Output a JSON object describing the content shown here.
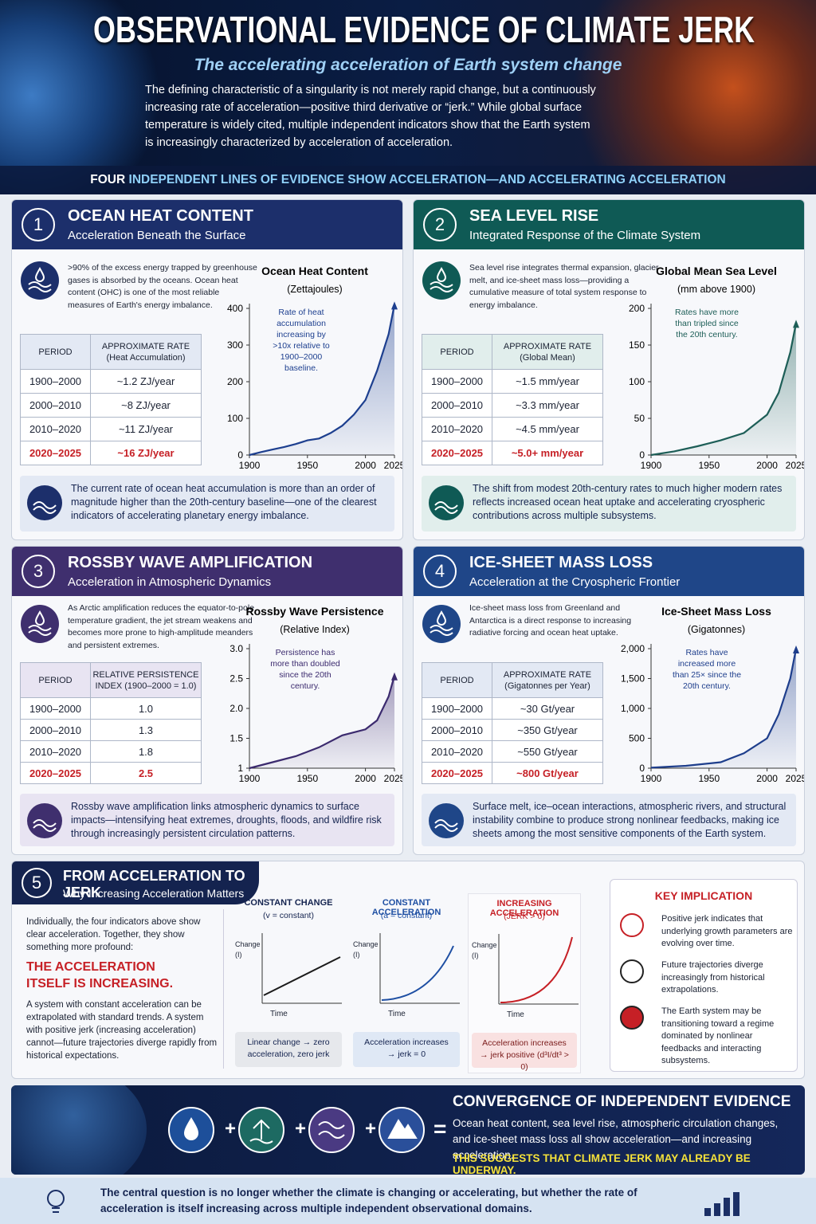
{
  "header": {
    "title": "OBSERVATIONAL EVIDENCE OF CLIMATE JERK",
    "subtitle": "The accelerating acceleration of Earth system change",
    "intro": "The defining characteristic of a singularity is not merely rapid change, but a continuously increasing rate of acceleration—positive third derivative or “jerk.” While global surface temperature is widely cited, multiple independent indicators show that the Earth system is increasingly characterized by acceleration of acceleration.",
    "banner": [
      "FOUR",
      "INDEPENDENT LINES OF EVIDENCE SHOW ACCELERATION—AND ACCELERATING ACCELERATION"
    ]
  },
  "panels": [
    {
      "number": "1",
      "title": "OCEAN HEAT CONTENT",
      "subtitle": "Acceleration Beneath the Surface",
      "description": ">90% of the excess energy trapped by greenhouse gases is absorbed by the oceans. Ocean heat content (OHC) is one of the most reliable measures of Earth's energy imbalance.",
      "table": {
        "headers": [
          "PERIOD",
          "APPROXIMATE RATE"
        ],
        "header_note": "(Heat Accumulation)",
        "rows": [
          [
            "1900–2000",
            "~1.2 ZJ/year"
          ],
          [
            "2000–2010",
            "~8 ZJ/year"
          ],
          [
            "2010–2020",
            "~11 ZJ/year"
          ],
          [
            "2020–2025",
            "~16 ZJ/year"
          ]
        ]
      },
      "chart": {
        "type": "area",
        "title": "Ocean Heat Content",
        "subtitle": "(Zettajoules)",
        "annotation": "Rate of heat accumulation increasing by >10x relative to 1900–2000 baseline.",
        "x": [
          1900,
          1910,
          1920,
          1930,
          1940,
          1950,
          1960,
          1970,
          1980,
          1990,
          2000,
          2010,
          2020,
          2025
        ],
        "values": [
          0,
          8,
          15,
          22,
          30,
          40,
          45,
          60,
          80,
          110,
          150,
          230,
          330,
          410
        ],
        "xlim": [
          1900,
          2025
        ],
        "xticks": [
          1900,
          1950,
          2000,
          2025
        ],
        "ylim": [
          0,
          400
        ],
        "yticks": [
          0,
          100,
          200,
          300,
          400
        ],
        "color": "#1d3f8f"
      },
      "note": "The current rate of ocean heat accumulation is more than an order of magnitude higher than the 20th-century baseline—one of the clearest indicators of accelerating planetary energy imbalance."
    },
    {
      "number": "2",
      "title": "SEA LEVEL RISE",
      "subtitle": "Integrated Response of the Climate System",
      "description": "Sea level rise integrates thermal expansion, glacier melt, and ice-sheet mass loss—providing a cumulative measure of total system response to energy imbalance.",
      "table": {
        "headers": [
          "PERIOD",
          "APPROXIMATE RATE"
        ],
        "header_note": "(Global Mean)",
        "rows": [
          [
            "1900–2000",
            "~1.5 mm/year"
          ],
          [
            "2000–2010",
            "~3.3 mm/year"
          ],
          [
            "2010–2020",
            "~4.5 mm/year"
          ],
          [
            "2020–2025",
            "~5.0+ mm/year"
          ]
        ]
      },
      "chart": {
        "type": "area",
        "title": "Global Mean Sea Level",
        "subtitle": "(mm above 1900)",
        "annotation": "Rates have more than tripled since the 20th century.",
        "x": [
          1900,
          1920,
          1940,
          1960,
          1980,
          2000,
          2010,
          2020,
          2025
        ],
        "values": [
          0,
          5,
          12,
          20,
          30,
          55,
          85,
          140,
          180
        ],
        "xlim": [
          1900,
          2025
        ],
        "xticks": [
          1900,
          1950,
          2000,
          2025
        ],
        "ylim": [
          0,
          200
        ],
        "yticks": [
          0,
          50,
          100,
          150,
          200
        ],
        "color": "#1d5e57"
      },
      "note": "The shift from modest 20th-century rates to much higher modern rates reflects increased ocean heat uptake and accelerating cryospheric contributions across multiple subsystems."
    },
    {
      "number": "3",
      "title": "ROSSBY WAVE AMPLIFICATION",
      "subtitle": "Acceleration in Atmospheric Dynamics",
      "description": "As Arctic amplification reduces the equator-to-pole temperature gradient, the jet stream weakens and becomes more prone to high-amplitude meanders and persistent extremes.",
      "table": {
        "headers": [
          "PERIOD",
          "RELATIVE PERSISTENCE"
        ],
        "header_note": "INDEX (1900–2000 = 1.0)",
        "rows": [
          [
            "1900–2000",
            "1.0"
          ],
          [
            "2000–2010",
            "1.3"
          ],
          [
            "2010–2020",
            "1.8"
          ],
          [
            "2020–2025",
            "2.5"
          ]
        ]
      },
      "chart": {
        "type": "area",
        "title": "Rossby Wave Persistence",
        "subtitle": "(Relative Index)",
        "annotation": "Persistence has more than doubled since the 20th century.",
        "x": [
          1900,
          1920,
          1940,
          1960,
          1980,
          2000,
          2010,
          2020,
          2025
        ],
        "values": [
          1,
          1.1,
          1.2,
          1.35,
          1.55,
          1.65,
          1.8,
          2.2,
          2.55
        ],
        "xlim": [
          1900,
          2025
        ],
        "xticks": [
          1900,
          1950,
          2000,
          2025
        ],
        "ylim": [
          1,
          3
        ],
        "yticks": [
          1,
          1.5,
          {
            "value": 2,
            "label": "2.0"
          },
          2.5,
          {
            "value": 3,
            "label": "3.0"
          }
        ],
        "color": "#3b2a6e"
      },
      "note": "Rossby wave amplification links atmospheric dynamics to surface impacts—intensifying heat extremes, droughts, floods, and wildfire risk through increasingly persistent circulation patterns."
    },
    {
      "number": "4",
      "title": "ICE-SHEET MASS LOSS",
      "subtitle": "Acceleration at the Cryospheric Frontier",
      "description": "Ice-sheet mass loss from Greenland and Antarctica is a direct response to increasing radiative forcing and ocean heat uptake.",
      "table": {
        "headers": [
          "PERIOD",
          "APPROXIMATE RATE"
        ],
        "header_note": "(Gigatonnes per Year)",
        "rows": [
          [
            "1900–2000",
            "~30 Gt/year"
          ],
          [
            "2000–2010",
            "~350 Gt/year"
          ],
          [
            "2010–2020",
            "~550 Gt/year"
          ],
          [
            "2020–2025",
            "~800 Gt/year"
          ]
        ]
      },
      "chart": {
        "type": "area",
        "title": "Ice-Sheet Mass Loss",
        "subtitle": "(Gigatonnes)",
        "annotation": "Rates have increased more than 25× since the 20th century.",
        "x": [
          1900,
          1930,
          1960,
          1980,
          2000,
          2010,
          2020,
          2025
        ],
        "values": [
          10,
          40,
          100,
          250,
          500,
          900,
          1500,
          2000
        ],
        "xlim": [
          1900,
          2025
        ],
        "xticks": [
          1900,
          1950,
          2000,
          2025
        ],
        "ylim": [
          0,
          2000
        ],
        "yticks": [
          0,
          500,
          {
            "value": 1000,
            "label": "1,000"
          },
          {
            "value": 1500,
            "label": "1,500"
          },
          {
            "value": 2000,
            "label": "2,000"
          }
        ],
        "color": "#1e3e8c"
      },
      "note": "Surface melt, ice–ocean interactions, atmospheric rivers, and structural instability combine to produce strong nonlinear feedbacks, making ice sheets among the most sensitive components of the Earth system."
    }
  ],
  "jerk": {
    "number": "5",
    "title": "FROM ACCELERATION TO JERK",
    "subtitle": "Why Increasing Acceleration Matters",
    "intro": "Individually, the four indicators above show clear acceleration. Together, they show something more profound:",
    "emphasis": "THE ACCELERATION ITSELF IS INCREASING.",
    "body": "A system with constant acceleration can be extrapolated with standard trends. A system with positive jerk (increasing acceleration) cannot—future trajectories diverge rapidly from historical expectations.",
    "diagrams": [
      {
        "title": "CONSTANT CHANGE",
        "formula": "(v = constant)",
        "y_label": "Change (I)",
        "x_label": "Time",
        "caption": "Linear change → zero acceleration, zero jerk"
      },
      {
        "title": "CONSTANT ACCELERATION",
        "formula": "(a = constant)",
        "y_label": "Change (I)",
        "x_label": "Time",
        "caption": "Acceleration increases → jerk = 0"
      },
      {
        "title": "INCREASING ACCELERATION",
        "formula": "(JERK > 0)",
        "y_label": "Change (I)",
        "x_label": "Time",
        "caption": "Acceleration increases → jerk positive (d³I/dt³ > 0)"
      }
    ],
    "implication": {
      "title": "KEY IMPLICATION",
      "items": [
        "Positive jerk indicates that underlying growth parameters are evolving over time.",
        "Future trajectories diverge increasingly from historical extrapolations.",
        "The Earth system may be transitioning toward a regime dominated by nonlinear feedbacks and interacting subsystems."
      ]
    }
  },
  "convergence": {
    "title": "CONVERGENCE OF INDEPENDENT EVIDENCE",
    "body": "Ocean heat content, sea level rise, atmospheric circulation changes, and ice-sheet mass loss all show acceleration—and increasing acceleration.",
    "highlight": "THIS SUGGESTS THAT CLIMATE JERK MAY ALREADY BE UNDERWAY."
  },
  "footer": {
    "text": "The central question is no longer whether the climate is changing or accelerating, but whether the rate of acceleration is itself increasing across multiple independent observational domains."
  }
}
